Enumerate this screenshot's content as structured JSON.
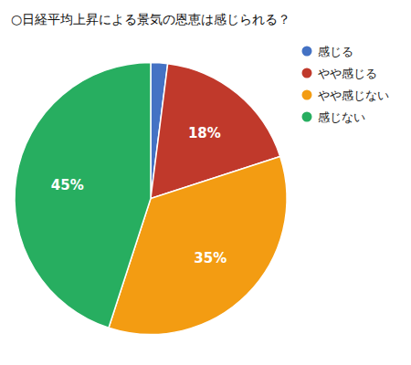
{
  "chart_data": {
    "type": "pie",
    "title": "○日経平均上昇による景気の恩恵は感じられる？",
    "categories": [
      "感じる",
      "やや感じる",
      "やや感じない",
      "感じない"
    ],
    "values": [
      2,
      18,
      35,
      45
    ],
    "colors": [
      "#4472C4",
      "#C0392B",
      "#F39C12",
      "#27AE60"
    ],
    "data_labels": true,
    "value_labels": [
      null,
      "18%",
      "35%",
      "45%"
    ],
    "legend": "upper right"
  }
}
